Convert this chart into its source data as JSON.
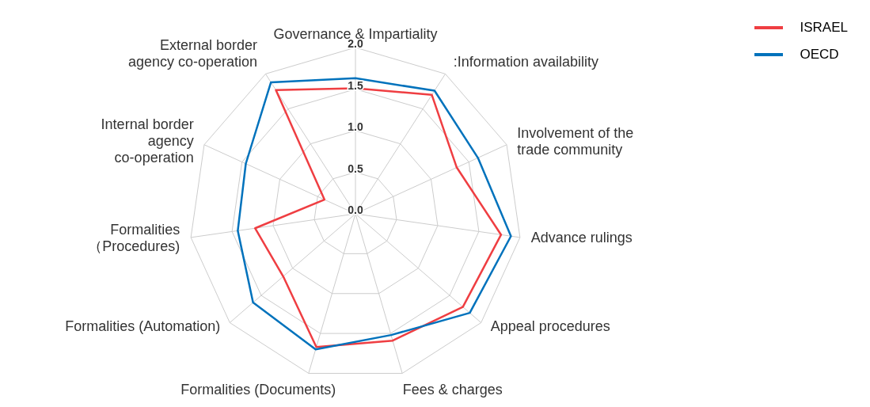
{
  "chart_data": {
    "type": "radar",
    "categories": [
      "Governance & Impartiality",
      ":Information availability",
      "Involvement of the\ntrade community",
      "Advance rulings",
      "Appeal procedures",
      "Fees & charges",
      "Formalities (Documents)",
      "Formalities (Automation)",
      "Formalities\n（Procedures)",
      "Internal border\nagency\nco-operation",
      "External border\nagency co-operation"
    ],
    "series": [
      {
        "name": "ISRAEL",
        "color": "#ef3e42",
        "values": [
          1.51,
          1.7,
          1.34,
          1.77,
          1.71,
          1.59,
          1.67,
          1.15,
          1.22,
          0.41,
          1.77
        ]
      },
      {
        "name": "OECD",
        "color": "#0072bc",
        "values": [
          1.63,
          1.76,
          1.62,
          1.89,
          1.82,
          1.52,
          1.7,
          1.63,
          1.43,
          1.45,
          1.88
        ]
      }
    ],
    "ylim": [
      0,
      2
    ],
    "yticks": [
      {
        "value": 0,
        "label": "0.0"
      },
      0.5,
      {
        "value": 1,
        "label": "1.0"
      },
      1.5,
      {
        "value": 2,
        "label": "2.0"
      }
    ],
    "grid": true,
    "legend": "top right",
    "marker": "none",
    "line_style": "solid"
  }
}
